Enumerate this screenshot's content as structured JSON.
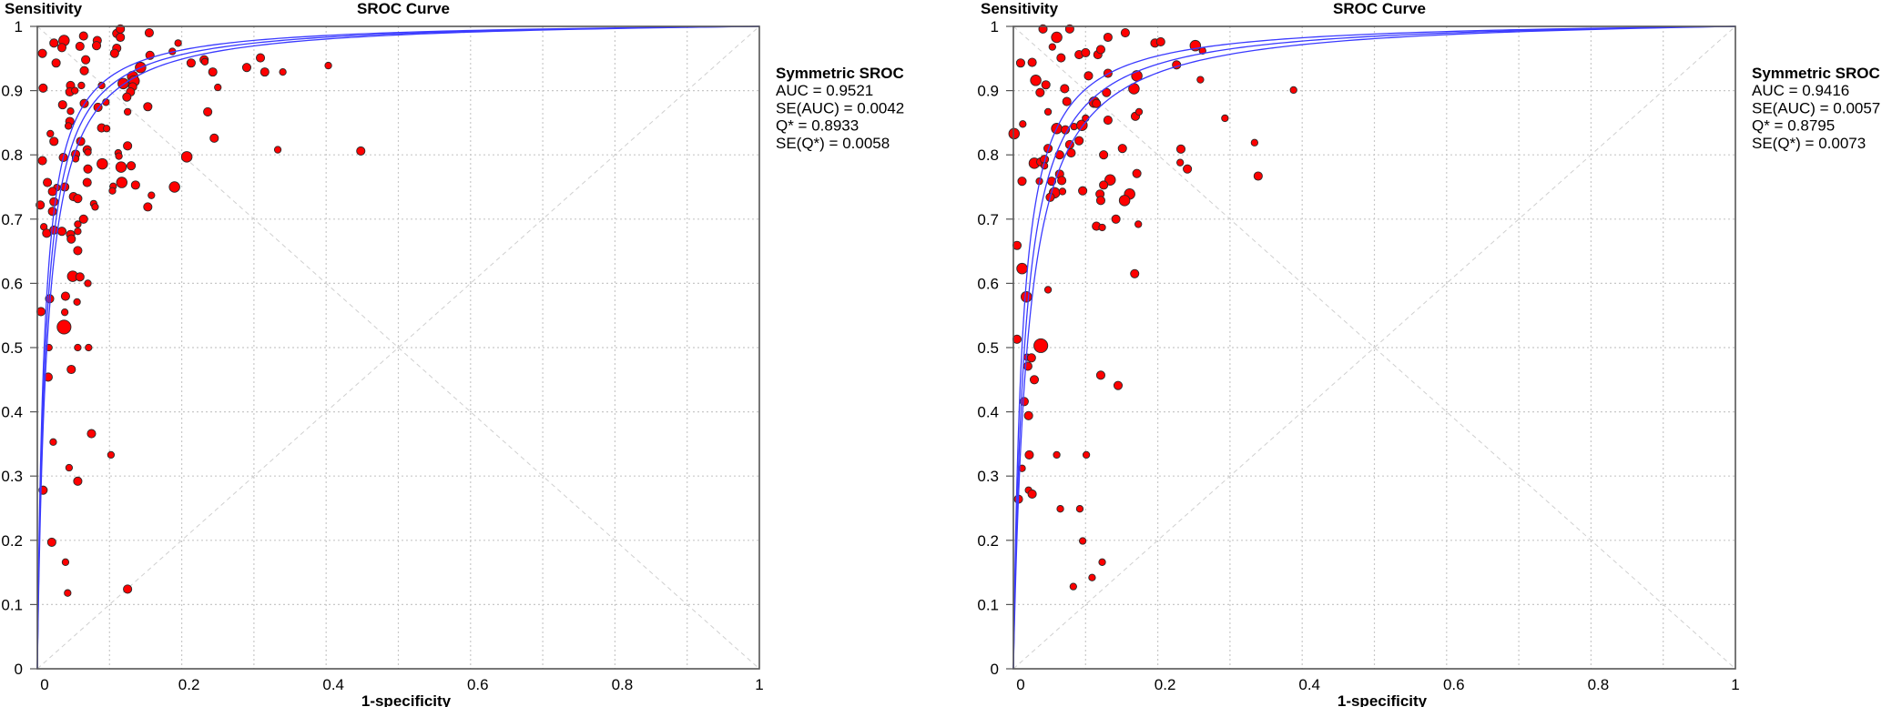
{
  "colors": {
    "point_fill": "#ff0000",
    "point_stroke": "#2a2a2a",
    "curve": "#3a3aff",
    "grid": "#c8c8c8",
    "axis": "#555555"
  },
  "chart_data": [
    {
      "type": "scatter",
      "title": "SROC Curve",
      "xlabel": "1-specificity",
      "ylabel": "Sensitivity",
      "xlim": [
        0,
        1
      ],
      "ylim": [
        0,
        1
      ],
      "xticks": [
        "0",
        "0.2",
        "0.4",
        "0.6",
        "0.8",
        "1"
      ],
      "yticks": [
        "0",
        "0.1",
        "0.2",
        "0.3",
        "0.4",
        "0.5",
        "0.6",
        "0.7",
        "0.8",
        "0.9",
        "1"
      ],
      "grid": true,
      "legend": {
        "title": "Symmetric SROC",
        "lines": [
          "AUC = 0.9521",
          "SE(AUC) = 0.0042",
          "Q* = 0.8933",
          "SE(Q*) = 0.0058"
        ],
        "placement": "right"
      },
      "sroc_curves_D": [
        4.31,
        4.47,
        4.65
      ],
      "points_note": "[1-specificity, sensitivity, relative weight]",
      "points": [
        [
          0.007,
          0.958,
          2
        ],
        [
          0.008,
          0.904,
          2
        ],
        [
          0.023,
          0.974,
          2
        ],
        [
          0.037,
          0.978,
          3
        ],
        [
          0.034,
          0.967,
          2
        ],
        [
          0.026,
          0.943,
          2
        ],
        [
          0.064,
          0.985,
          2
        ],
        [
          0.059,
          0.969,
          2
        ],
        [
          0.067,
          0.948,
          2
        ],
        [
          0.065,
          0.931,
          2
        ],
        [
          0.083,
          0.978,
          2
        ],
        [
          0.082,
          0.97,
          2
        ],
        [
          0.11,
          0.989,
          2
        ],
        [
          0.115,
          0.996,
          2
        ],
        [
          0.115,
          0.983,
          2
        ],
        [
          0.11,
          0.966,
          2
        ],
        [
          0.107,
          0.958,
          2
        ],
        [
          0.155,
          0.99,
          2
        ],
        [
          0.156,
          0.955,
          2
        ],
        [
          0.187,
          0.961,
          1
        ],
        [
          0.195,
          0.974,
          1
        ],
        [
          0.213,
          0.943,
          2
        ],
        [
          0.231,
          0.948,
          2
        ],
        [
          0.232,
          0.945,
          1
        ],
        [
          0.243,
          0.929,
          2
        ],
        [
          0.25,
          0.905,
          1
        ],
        [
          0.236,
          0.867,
          2
        ],
        [
          0.245,
          0.826,
          2
        ],
        [
          0.29,
          0.936,
          2
        ],
        [
          0.309,
          0.951,
          2
        ],
        [
          0.315,
          0.929,
          2
        ],
        [
          0.34,
          0.929,
          1
        ],
        [
          0.333,
          0.808,
          1
        ],
        [
          0.403,
          0.939,
          1
        ],
        [
          0.448,
          0.806,
          2
        ],
        [
          0.143,
          0.936,
          3
        ],
        [
          0.132,
          0.922,
          3
        ],
        [
          0.134,
          0.915,
          3
        ],
        [
          0.119,
          0.911,
          3
        ],
        [
          0.132,
          0.906,
          2
        ],
        [
          0.129,
          0.898,
          2
        ],
        [
          0.124,
          0.89,
          2
        ],
        [
          0.125,
          0.867,
          1
        ],
        [
          0.153,
          0.875,
          2
        ],
        [
          0.089,
          0.908,
          1
        ],
        [
          0.095,
          0.882,
          1
        ],
        [
          0.084,
          0.874,
          2
        ],
        [
          0.089,
          0.842,
          2
        ],
        [
          0.096,
          0.841,
          1
        ],
        [
          0.061,
          0.908,
          1
        ],
        [
          0.046,
          0.908,
          2
        ],
        [
          0.045,
          0.898,
          2
        ],
        [
          0.052,
          0.9,
          1
        ],
        [
          0.035,
          0.878,
          2
        ],
        [
          0.065,
          0.88,
          2
        ],
        [
          0.046,
          0.868,
          1
        ],
        [
          0.045,
          0.852,
          2
        ],
        [
          0.043,
          0.845,
          1
        ],
        [
          0.018,
          0.833,
          1
        ],
        [
          0.023,
          0.821,
          2
        ],
        [
          0.06,
          0.821,
          2
        ],
        [
          0.007,
          0.791,
          2
        ],
        [
          0.036,
          0.796,
          2
        ],
        [
          0.053,
          0.801,
          2
        ],
        [
          0.053,
          0.794,
          1
        ],
        [
          0.069,
          0.808,
          2
        ],
        [
          0.07,
          0.804,
          1
        ],
        [
          0.07,
          0.778,
          2
        ],
        [
          0.069,
          0.757,
          2
        ],
        [
          0.09,
          0.786,
          3
        ],
        [
          0.116,
          0.781,
          3
        ],
        [
          0.112,
          0.803,
          1
        ],
        [
          0.113,
          0.798,
          1
        ],
        [
          0.125,
          0.814,
          2
        ],
        [
          0.13,
          0.783,
          2
        ],
        [
          0.117,
          0.757,
          3
        ],
        [
          0.136,
          0.753,
          2
        ],
        [
          0.105,
          0.751,
          1
        ],
        [
          0.104,
          0.744,
          1
        ],
        [
          0.158,
          0.737,
          1
        ],
        [
          0.153,
          0.719,
          2
        ],
        [
          0.19,
          0.75,
          3
        ],
        [
          0.207,
          0.797,
          3
        ],
        [
          0.014,
          0.757,
          2
        ],
        [
          0.038,
          0.75,
          2
        ],
        [
          0.027,
          0.749,
          1
        ],
        [
          0.021,
          0.743,
          2
        ],
        [
          0.023,
          0.727,
          2
        ],
        [
          0.021,
          0.712,
          2
        ],
        [
          0.004,
          0.722,
          2
        ],
        [
          0.05,
          0.735,
          2
        ],
        [
          0.056,
          0.732,
          2
        ],
        [
          0.078,
          0.724,
          1
        ],
        [
          0.08,
          0.719,
          1
        ],
        [
          0.064,
          0.7,
          2
        ],
        [
          0.056,
          0.692,
          1
        ],
        [
          0.009,
          0.688,
          1
        ],
        [
          0.013,
          0.678,
          2
        ],
        [
          0.023,
          0.683,
          2
        ],
        [
          0.034,
          0.681,
          2
        ],
        [
          0.046,
          0.676,
          2
        ],
        [
          0.047,
          0.669,
          2
        ],
        [
          0.056,
          0.681,
          1
        ],
        [
          0.056,
          0.651,
          2
        ],
        [
          0.049,
          0.611,
          3
        ],
        [
          0.059,
          0.61,
          2
        ],
        [
          0.07,
          0.6,
          1
        ],
        [
          0.017,
          0.576,
          2
        ],
        [
          0.039,
          0.58,
          2
        ],
        [
          0.055,
          0.571,
          1
        ],
        [
          0.005,
          0.556,
          2
        ],
        [
          0.038,
          0.555,
          1
        ],
        [
          0.037,
          0.532,
          4
        ],
        [
          0.016,
          0.5,
          1
        ],
        [
          0.056,
          0.5,
          1
        ],
        [
          0.071,
          0.5,
          1
        ],
        [
          0.047,
          0.466,
          2
        ],
        [
          0.015,
          0.454,
          2
        ],
        [
          0.075,
          0.366,
          2
        ],
        [
          0.102,
          0.333,
          1
        ],
        [
          0.022,
          0.353,
          1
        ],
        [
          0.044,
          0.313,
          1
        ],
        [
          0.056,
          0.292,
          2
        ],
        [
          0.008,
          0.278,
          2
        ],
        [
          0.02,
          0.197,
          2
        ],
        [
          0.039,
          0.166,
          1
        ],
        [
          0.042,
          0.118,
          1
        ],
        [
          0.125,
          0.124,
          2
        ]
      ]
    },
    {
      "type": "scatter",
      "title": "SROC Curve",
      "xlabel": "1-specificity",
      "ylabel": "Sensitivity",
      "xlim": [
        0,
        1
      ],
      "ylim": [
        0,
        1
      ],
      "xticks": [
        "0",
        "0.2",
        "0.4",
        "0.6",
        "0.8",
        "1"
      ],
      "yticks": [
        "0",
        "0.1",
        "0.2",
        "0.3",
        "0.4",
        "0.5",
        "0.6",
        "0.7",
        "0.8",
        "0.9",
        "1"
      ],
      "grid": true,
      "legend": {
        "title": "Symmetric SROC",
        "lines": [
          "AUC = 0.9416",
          "SE(AUC) = 0.0057",
          "Q* = 0.8795",
          "SE(Q*) = 0.0073"
        ],
        "placement": "right"
      },
      "sroc_curves_D": [
        3.94,
        4.16,
        4.42
      ],
      "points_note": "[1-specificity, sensitivity, relative weight]",
      "points": [
        [
          0.041,
          0.996,
          2
        ],
        [
          0.078,
          0.996,
          2
        ],
        [
          0.06,
          0.983,
          3
        ],
        [
          0.054,
          0.968,
          1
        ],
        [
          0.066,
          0.951,
          2
        ],
        [
          0.01,
          0.943,
          2
        ],
        [
          0.026,
          0.944,
          2
        ],
        [
          0.031,
          0.916,
          3
        ],
        [
          0.045,
          0.909,
          2
        ],
        [
          0.037,
          0.897,
          2
        ],
        [
          0.071,
          0.903,
          2
        ],
        [
          0.048,
          0.867,
          1
        ],
        [
          0.074,
          0.883,
          2
        ],
        [
          0.013,
          0.848,
          1
        ],
        [
          0.001,
          0.833,
          3
        ],
        [
          0.048,
          0.81,
          2
        ],
        [
          0.064,
          0.8,
          2
        ],
        [
          0.029,
          0.787,
          3
        ],
        [
          0.038,
          0.789,
          2
        ],
        [
          0.043,
          0.793,
          2
        ],
        [
          0.043,
          0.783,
          1
        ],
        [
          0.012,
          0.759,
          2
        ],
        [
          0.036,
          0.759,
          1
        ],
        [
          0.053,
          0.759,
          2
        ],
        [
          0.064,
          0.77,
          2
        ],
        [
          0.067,
          0.76,
          2
        ],
        [
          0.057,
          0.741,
          3
        ],
        [
          0.051,
          0.734,
          2
        ],
        [
          0.068,
          0.743,
          1
        ],
        [
          0.06,
          0.841,
          3
        ],
        [
          0.072,
          0.839,
          2
        ],
        [
          0.084,
          0.844,
          1
        ],
        [
          0.078,
          0.816,
          2
        ],
        [
          0.08,
          0.803,
          2
        ],
        [
          0.091,
          0.822,
          2
        ],
        [
          0.095,
          0.846,
          3
        ],
        [
          0.1,
          0.857,
          1
        ],
        [
          0.091,
          0.956,
          2
        ],
        [
          0.1,
          0.959,
          2
        ],
        [
          0.104,
          0.923,
          2
        ],
        [
          0.117,
          0.956,
          2
        ],
        [
          0.121,
          0.964,
          2
        ],
        [
          0.131,
          0.983,
          2
        ],
        [
          0.155,
          0.99,
          2
        ],
        [
          0.131,
          0.927,
          2
        ],
        [
          0.129,
          0.897,
          2
        ],
        [
          0.112,
          0.882,
          3
        ],
        [
          0.115,
          0.88,
          2
        ],
        [
          0.131,
          0.854,
          2
        ],
        [
          0.171,
          0.923,
          3
        ],
        [
          0.167,
          0.903,
          3
        ],
        [
          0.169,
          0.86,
          2
        ],
        [
          0.174,
          0.867,
          1
        ],
        [
          0.125,
          0.8,
          2
        ],
        [
          0.151,
          0.81,
          2
        ],
        [
          0.134,
          0.761,
          3
        ],
        [
          0.125,
          0.753,
          2
        ],
        [
          0.096,
          0.744,
          2
        ],
        [
          0.12,
          0.739,
          2
        ],
        [
          0.121,
          0.729,
          2
        ],
        [
          0.161,
          0.739,
          3
        ],
        [
          0.154,
          0.729,
          3
        ],
        [
          0.142,
          0.7,
          2
        ],
        [
          0.171,
          0.771,
          2
        ],
        [
          0.173,
          0.692,
          1
        ],
        [
          0.115,
          0.689,
          2
        ],
        [
          0.123,
          0.687,
          1
        ],
        [
          0.196,
          0.974,
          2
        ],
        [
          0.204,
          0.976,
          2
        ],
        [
          0.226,
          0.94,
          2
        ],
        [
          0.252,
          0.97,
          3
        ],
        [
          0.262,
          0.962,
          1
        ],
        [
          0.259,
          0.917,
          1
        ],
        [
          0.232,
          0.809,
          2
        ],
        [
          0.231,
          0.788,
          1
        ],
        [
          0.241,
          0.778,
          2
        ],
        [
          0.293,
          0.857,
          1
        ],
        [
          0.388,
          0.901,
          1
        ],
        [
          0.334,
          0.819,
          1
        ],
        [
          0.339,
          0.767,
          2
        ],
        [
          0.005,
          0.659,
          2
        ],
        [
          0.012,
          0.623,
          3
        ],
        [
          0.168,
          0.615,
          2
        ],
        [
          0.018,
          0.579,
          3
        ],
        [
          0.048,
          0.59,
          1
        ],
        [
          0.005,
          0.513,
          2
        ],
        [
          0.038,
          0.503,
          4
        ],
        [
          0.019,
          0.485,
          1
        ],
        [
          0.025,
          0.484,
          2
        ],
        [
          0.02,
          0.471,
          2
        ],
        [
          0.029,
          0.45,
          2
        ],
        [
          0.121,
          0.457,
          2
        ],
        [
          0.145,
          0.441,
          2
        ],
        [
          0.015,
          0.416,
          2
        ],
        [
          0.021,
          0.394,
          2
        ],
        [
          0.022,
          0.333,
          2
        ],
        [
          0.06,
          0.333,
          1
        ],
        [
          0.101,
          0.333,
          1
        ],
        [
          0.012,
          0.312,
          1
        ],
        [
          0.021,
          0.278,
          1
        ],
        [
          0.026,
          0.272,
          2
        ],
        [
          0.007,
          0.264,
          2
        ],
        [
          0.065,
          0.249,
          1
        ],
        [
          0.092,
          0.249,
          1
        ],
        [
          0.096,
          0.199,
          1
        ],
        [
          0.123,
          0.166,
          1
        ],
        [
          0.109,
          0.142,
          1
        ],
        [
          0.083,
          0.128,
          1
        ]
      ]
    }
  ]
}
